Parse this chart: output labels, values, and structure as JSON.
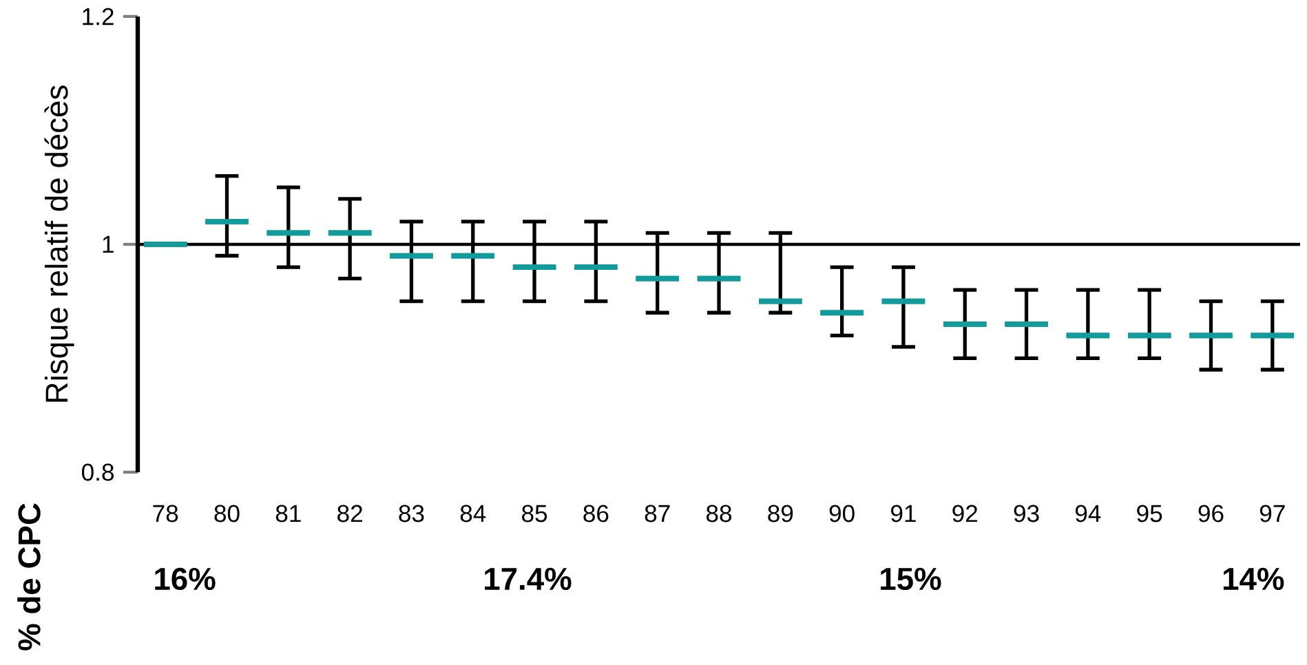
{
  "chart_data": {
    "type": "box",
    "ylabel": "Risque relatif de décès",
    "categories": [
      "78",
      "80",
      "81",
      "82",
      "83",
      "84",
      "85",
      "86",
      "87",
      "88",
      "89",
      "90",
      "91",
      "92",
      "93",
      "94",
      "95",
      "96",
      "97"
    ],
    "series": [
      {
        "color": "#139a9a",
        "boxes": [
          {
            "low": 1.0,
            "q1": 1.0,
            "median": 1.0,
            "q3": 1.0,
            "high": 1.0
          },
          {
            "low": 0.99,
            "q1": 1.02,
            "median": 1.02,
            "q3": 1.02,
            "high": 1.06
          },
          {
            "low": 0.98,
            "q1": 1.01,
            "median": 1.01,
            "q3": 1.01,
            "high": 1.05
          },
          {
            "low": 0.97,
            "q1": 1.01,
            "median": 1.01,
            "q3": 1.01,
            "high": 1.04
          },
          {
            "low": 0.95,
            "q1": 0.99,
            "median": 0.99,
            "q3": 0.99,
            "high": 1.02
          },
          {
            "low": 0.95,
            "q1": 0.99,
            "median": 0.99,
            "q3": 0.99,
            "high": 1.02
          },
          {
            "low": 0.95,
            "q1": 0.98,
            "median": 0.98,
            "q3": 0.98,
            "high": 1.02
          },
          {
            "low": 0.95,
            "q1": 0.98,
            "median": 0.98,
            "q3": 0.98,
            "high": 1.02
          },
          {
            "low": 0.94,
            "q1": 0.97,
            "median": 0.97,
            "q3": 0.97,
            "high": 1.01
          },
          {
            "low": 0.94,
            "q1": 0.97,
            "median": 0.97,
            "q3": 0.97,
            "high": 1.01
          },
          {
            "low": 0.94,
            "q1": 0.95,
            "median": 0.95,
            "q3": 0.95,
            "high": 1.01
          },
          {
            "low": 0.92,
            "q1": 0.94,
            "median": 0.94,
            "q3": 0.94,
            "high": 0.98
          },
          {
            "low": 0.91,
            "q1": 0.95,
            "median": 0.95,
            "q3": 0.95,
            "high": 0.98
          },
          {
            "low": 0.9,
            "q1": 0.93,
            "median": 0.93,
            "q3": 0.93,
            "high": 0.96
          },
          {
            "low": 0.9,
            "q1": 0.93,
            "median": 0.93,
            "q3": 0.93,
            "high": 0.96
          },
          {
            "low": 0.9,
            "q1": 0.92,
            "median": 0.92,
            "q3": 0.92,
            "high": 0.96
          },
          {
            "low": 0.9,
            "q1": 0.92,
            "median": 0.92,
            "q3": 0.92,
            "high": 0.96
          },
          {
            "low": 0.89,
            "q1": 0.92,
            "median": 0.92,
            "q3": 0.92,
            "high": 0.95
          },
          {
            "low": 0.89,
            "q1": 0.92,
            "median": 0.92,
            "q3": 0.92,
            "high": 0.95
          }
        ]
      }
    ],
    "ylim": [
      0.8,
      1.2
    ],
    "yticks": [
      0.8,
      1,
      1.2
    ],
    "ref_lines": [
      {
        "axis": "y",
        "value": 1,
        "color": "#000000"
      }
    ],
    "annotations": [
      "% de CPC",
      "16%",
      "17.4%",
      "15%",
      "14%"
    ]
  }
}
